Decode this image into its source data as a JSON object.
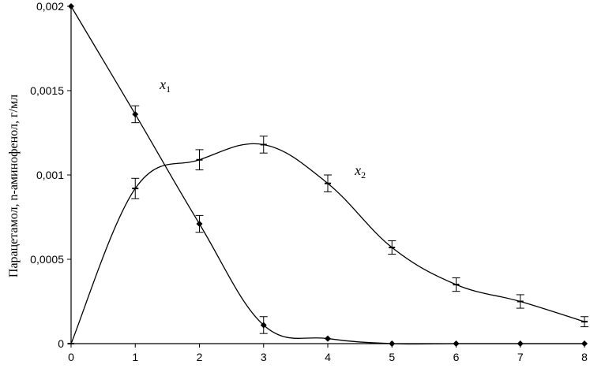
{
  "chart_data": {
    "type": "line",
    "title": "",
    "xlabel": "",
    "ylabel": "Парацетамол, n-аминофенол, г/мл",
    "x": [
      0,
      1,
      2,
      3,
      4,
      5,
      6,
      7,
      8
    ],
    "xlim": [
      0,
      8
    ],
    "ylim": [
      0,
      0.002
    ],
    "x_ticks": [
      "0",
      "1",
      "2",
      "3",
      "4",
      "5",
      "6",
      "7",
      "8"
    ],
    "y_ticks": [
      {
        "value": 0,
        "label": "0"
      },
      {
        "value": 0.0005,
        "label": "0,0005"
      },
      {
        "value": 0.001,
        "label": "0,001"
      },
      {
        "value": 0.0015,
        "label": "0,0015"
      },
      {
        "value": 0.002,
        "label": "0,002"
      }
    ],
    "grid": false,
    "series": [
      {
        "name": "x1",
        "label_main": "x",
        "label_sub": "1",
        "marker": "diamond",
        "values": [
          0.002,
          0.00136,
          0.00071,
          0.00011,
          3e-05,
          0.0,
          0.0,
          0.0,
          0.0
        ],
        "errors": [
          0,
          5e-05,
          5e-05,
          5e-05,
          0,
          0,
          0,
          0,
          0
        ]
      },
      {
        "name": "x2",
        "label_main": "x",
        "label_sub": "2",
        "marker": "dash",
        "values": [
          0.0,
          0.00092,
          0.00109,
          0.00118,
          0.00095,
          0.00057,
          0.00035,
          0.00025,
          0.00013
        ],
        "errors": [
          0,
          6e-05,
          6e-05,
          5e-05,
          5e-05,
          4e-05,
          4e-05,
          4e-05,
          3e-05
        ]
      }
    ]
  }
}
